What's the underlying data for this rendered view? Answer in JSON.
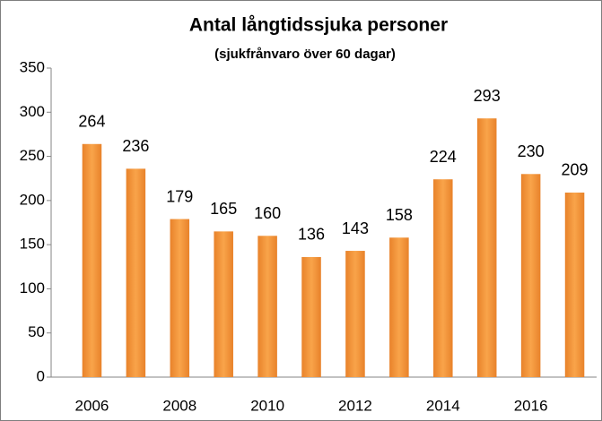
{
  "chart_data": {
    "type": "bar",
    "title": "Antal långtidssjuka personer",
    "subtitle": "(sjukfrånvaro över 60 dagar)",
    "categories": [
      "2006",
      null,
      "2008",
      null,
      "2010",
      null,
      "2012",
      null,
      "2014",
      null,
      "2016",
      null
    ],
    "values": [
      264,
      236,
      179,
      165,
      160,
      136,
      143,
      158,
      224,
      293,
      230,
      209
    ],
    "color": "#f39a3a",
    "ylim": [
      0,
      350
    ],
    "yticks": [
      0,
      50,
      100,
      150,
      200,
      250,
      300,
      350
    ],
    "grid": false
  }
}
